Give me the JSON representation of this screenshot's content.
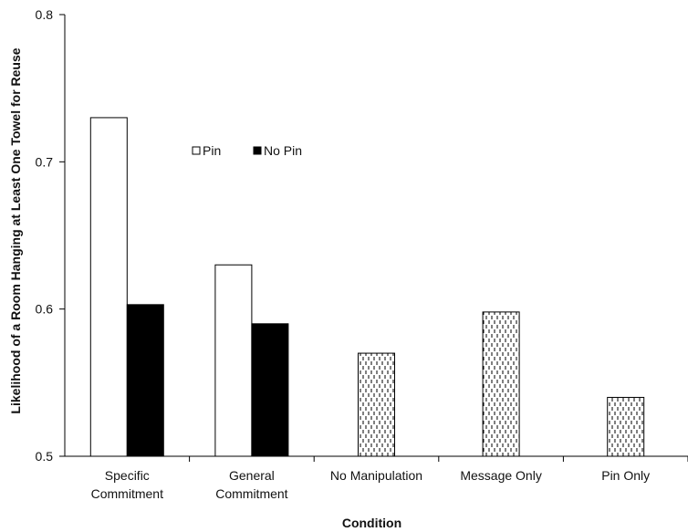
{
  "chart_data": {
    "type": "bar",
    "title": "",
    "xlabel": "Condition",
    "ylabel": "Likelihood of a Room Hanging at Least One Towel for Reuse",
    "ylim": [
      0.5,
      0.8
    ],
    "yticks": [
      "0.5",
      "0.6",
      "0.7",
      "0.8"
    ],
    "grid": false,
    "legend_position": "top-center",
    "categories": [
      [
        "Specific",
        "Commitment"
      ],
      [
        "General",
        "Commitment"
      ],
      [
        "No Manipulation"
      ],
      [
        "Message Only"
      ],
      [
        "Pin Only"
      ]
    ],
    "series": [
      {
        "name": "Pin",
        "style": "open",
        "values": [
          0.73,
          0.63,
          null,
          null,
          null
        ]
      },
      {
        "name": "No Pin",
        "style": "solid",
        "values": [
          0.603,
          0.59,
          null,
          null,
          null
        ]
      },
      {
        "name": "",
        "style": "dashed-fill",
        "values": [
          null,
          null,
          0.57,
          0.598,
          0.54
        ]
      }
    ],
    "colors": {
      "open": "#ffffff",
      "solid": "#000000",
      "stroke": "#000000"
    }
  }
}
